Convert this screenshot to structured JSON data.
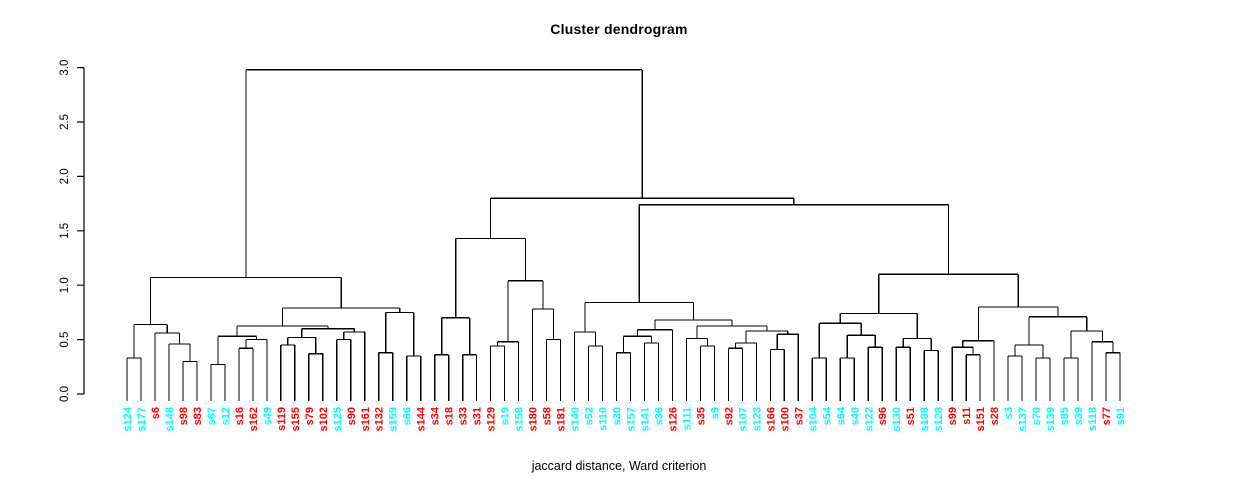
{
  "title": "Cluster dendrogram",
  "xlabel": "jaccard distance, Ward criterion",
  "chart_data": {
    "type": "dendrogram",
    "title": "Cluster dendrogram",
    "xlabel": "jaccard distance, Ward criterion",
    "ylabel": "",
    "ylim": [
      0,
      3
    ],
    "grid": false,
    "yticks": [
      0,
      0.5,
      1,
      1.5,
      2,
      2.5,
      3
    ],
    "ytick_labels": [
      "0.0",
      "0.5",
      "1.0",
      "1.5",
      "2.0",
      "2.5",
      "3.0"
    ],
    "line_color": "#000000",
    "palette": {
      "red": "#ff0000",
      "cyan": "#00ffff"
    },
    "leaves": [
      [
        "s124",
        "cyan"
      ],
      [
        "s177",
        "cyan"
      ],
      [
        "s6",
        "red"
      ],
      [
        "s148",
        "cyan"
      ],
      [
        "s98",
        "red"
      ],
      [
        "s83",
        "red"
      ],
      [
        "s67",
        "cyan"
      ],
      [
        "s12",
        "cyan"
      ],
      [
        "s16",
        "red"
      ],
      [
        "s162",
        "red"
      ],
      [
        "s49",
        "cyan"
      ],
      [
        "s119",
        "red"
      ],
      [
        "s155",
        "red"
      ],
      [
        "s79",
        "red"
      ],
      [
        "s102",
        "red"
      ],
      [
        "s125",
        "cyan"
      ],
      [
        "s90",
        "red"
      ],
      [
        "s161",
        "red"
      ],
      [
        "s132",
        "red"
      ],
      [
        "s159",
        "cyan"
      ],
      [
        "s66",
        "cyan"
      ],
      [
        "s144",
        "red"
      ],
      [
        "s34",
        "red"
      ],
      [
        "s18",
        "red"
      ],
      [
        "s33",
        "red"
      ],
      [
        "s31",
        "red"
      ],
      [
        "s129",
        "red"
      ],
      [
        "s19",
        "cyan"
      ],
      [
        "s158",
        "cyan"
      ],
      [
        "s180",
        "red"
      ],
      [
        "s58",
        "red"
      ],
      [
        "s181",
        "red"
      ],
      [
        "s140",
        "cyan"
      ],
      [
        "s52",
        "cyan"
      ],
      [
        "s110",
        "cyan"
      ],
      [
        "s30",
        "cyan"
      ],
      [
        "s157",
        "cyan"
      ],
      [
        "s141",
        "cyan"
      ],
      [
        "s36",
        "cyan"
      ],
      [
        "s126",
        "red"
      ],
      [
        "s111",
        "cyan"
      ],
      [
        "s35",
        "red"
      ],
      [
        "s9",
        "cyan"
      ],
      [
        "s92",
        "red"
      ],
      [
        "s107",
        "cyan"
      ],
      [
        "s123",
        "cyan"
      ],
      [
        "s166",
        "red"
      ],
      [
        "s100",
        "red"
      ],
      [
        "s37",
        "red"
      ],
      [
        "s104",
        "cyan"
      ],
      [
        "s54",
        "cyan"
      ],
      [
        "s64",
        "cyan"
      ],
      [
        "s40",
        "cyan"
      ],
      [
        "s122",
        "cyan"
      ],
      [
        "s96",
        "red"
      ],
      [
        "s130",
        "cyan"
      ],
      [
        "s51",
        "red"
      ],
      [
        "s188",
        "cyan"
      ],
      [
        "s128",
        "cyan"
      ],
      [
        "s99",
        "red"
      ],
      [
        "s11",
        "red"
      ],
      [
        "s151",
        "red"
      ],
      [
        "s28",
        "red"
      ],
      [
        "s3",
        "cyan"
      ],
      [
        "s137",
        "cyan"
      ],
      [
        "s70",
        "cyan"
      ],
      [
        "s139",
        "cyan"
      ],
      [
        "s85",
        "cyan"
      ],
      [
        "s39",
        "cyan"
      ],
      [
        "s118",
        "cyan"
      ],
      [
        "s77",
        "red"
      ],
      [
        "s91",
        "cyan"
      ]
    ],
    "tree": {
      "h": 2.98,
      "c": [
        {
          "h": 1.07,
          "c": [
            {
              "h": 0.64,
              "c": [
                {
                  "h": 0.33,
                  "c": [
                    0,
                    1
                  ]
                },
                {
                  "h": 0.56,
                  "c": [
                    2,
                    {
                      "h": 0.46,
                      "c": [
                        3,
                        {
                          "h": 0.3,
                          "c": [
                            4,
                            5
                          ]
                        }
                      ]
                    }
                  ]
                }
              ]
            },
            {
              "h": 0.79,
              "c": [
                {
                  "h": 0.625,
                  "c": [
                    {
                      "h": 0.53,
                      "c": [
                        {
                          "h": 0.27,
                          "c": [
                            6,
                            7
                          ]
                        },
                        {
                          "h": 0.5,
                          "c": [
                            {
                              "h": 0.42,
                              "c": [
                                8,
                                9
                              ]
                            },
                            10
                          ]
                        }
                      ]
                    },
                    {
                      "h": 0.6,
                      "c": [
                        {
                          "h": 0.52,
                          "c": [
                            {
                              "h": 0.45,
                              "c": [
                                11,
                                12
                              ]
                            },
                            {
                              "h": 0.37,
                              "c": [
                                13,
                                14
                              ]
                            }
                          ]
                        },
                        {
                          "h": 0.57,
                          "c": [
                            {
                              "h": 0.5,
                              "c": [
                                15,
                                16
                              ]
                            },
                            17
                          ]
                        }
                      ]
                    }
                  ]
                },
                {
                  "h": 0.75,
                  "c": [
                    {
                      "h": 0.38,
                      "c": [
                        18,
                        19
                      ]
                    },
                    {
                      "h": 0.35,
                      "c": [
                        20,
                        21
                      ]
                    }
                  ]
                }
              ]
            }
          ]
        },
        {
          "h": 1.8,
          "c": [
            {
              "h": 1.43,
              "c": [
                {
                  "h": 0.7,
                  "c": [
                    {
                      "h": 0.36,
                      "c": [
                        22,
                        23
                      ]
                    },
                    {
                      "h": 0.36,
                      "c": [
                        24,
                        25
                      ]
                    }
                  ]
                },
                {
                  "h": 1.04,
                  "c": [
                    {
                      "h": 0.48,
                      "c": [
                        {
                          "h": 0.44,
                          "c": [
                            26,
                            27
                          ]
                        },
                        28
                      ]
                    },
                    {
                      "h": 0.78,
                      "c": [
                        29,
                        {
                          "h": 0.5,
                          "c": [
                            30,
                            31
                          ]
                        }
                      ]
                    }
                  ]
                }
              ]
            },
            {
              "h": 1.74,
              "c": [
                {
                  "h": 0.84,
                  "c": [
                    {
                      "h": 0.57,
                      "c": [
                        32,
                        {
                          "h": 0.44,
                          "c": [
                            33,
                            34
                          ]
                        }
                      ]
                    },
                    {
                      "h": 0.68,
                      "c": [
                        {
                          "h": 0.59,
                          "c": [
                            {
                              "h": 0.53,
                              "c": [
                                {
                                  "h": 0.38,
                                  "c": [
                                    35,
                                    36
                                  ]
                                },
                                {
                                  "h": 0.47,
                                  "c": [
                                    37,
                                    38
                                  ]
                                }
                              ]
                            },
                            39
                          ]
                        },
                        {
                          "h": 0.625,
                          "c": [
                            {
                              "h": 0.51,
                              "c": [
                                40,
                                {
                                  "h": 0.44,
                                  "c": [
                                    41,
                                    42
                                  ]
                                }
                              ]
                            },
                            {
                              "h": 0.58,
                              "c": [
                                {
                                  "h": 0.47,
                                  "c": [
                                    {
                                      "h": 0.42,
                                      "c": [
                                        43,
                                        44
                                      ]
                                    },
                                    45
                                  ]
                                },
                                {
                                  "h": 0.55,
                                  "c": [
                                    {
                                      "h": 0.41,
                                      "c": [
                                        46,
                                        47
                                      ]
                                    },
                                    48
                                  ]
                                }
                              ]
                            }
                          ]
                        }
                      ]
                    }
                  ]
                },
                {
                  "h": 1.1,
                  "c": [
                    {
                      "h": 0.74,
                      "c": [
                        {
                          "h": 0.65,
                          "c": [
                            {
                              "h": 0.33,
                              "c": [
                                49,
                                50
                              ]
                            },
                            {
                              "h": 0.54,
                              "c": [
                                {
                                  "h": 0.33,
                                  "c": [
                                    51,
                                    52
                                  ]
                                },
                                {
                                  "h": 0.43,
                                  "c": [
                                    53,
                                    54
                                  ]
                                }
                              ]
                            }
                          ]
                        },
                        {
                          "h": 0.51,
                          "c": [
                            {
                              "h": 0.43,
                              "c": [
                                55,
                                56
                              ]
                            },
                            {
                              "h": 0.4,
                              "c": [
                                57,
                                58
                              ]
                            }
                          ]
                        }
                      ]
                    },
                    {
                      "h": 0.8,
                      "c": [
                        {
                          "h": 0.49,
                          "c": [
                            {
                              "h": 0.43,
                              "c": [
                                59,
                                {
                                  "h": 0.36,
                                  "c": [
                                    60,
                                    61
                                  ]
                                }
                              ]
                            },
                            62
                          ]
                        },
                        {
                          "h": 0.71,
                          "c": [
                            {
                              "h": 0.45,
                              "c": [
                                {
                                  "h": 0.35,
                                  "c": [
                                    63,
                                    64
                                  ]
                                },
                                {
                                  "h": 0.33,
                                  "c": [
                                    65,
                                    66
                                  ]
                                }
                              ]
                            },
                            {
                              "h": 0.58,
                              "c": [
                                {
                                  "h": 0.33,
                                  "c": [
                                    67,
                                    68
                                  ]
                                },
                                {
                                  "h": 0.48,
                                  "c": [
                                    69,
                                    {
                                      "h": 0.38,
                                      "c": [
                                        70,
                                        71
                                      ]
                                    }
                                  ]
                                }
                              ]
                            }
                          ]
                        }
                      ]
                    }
                  ]
                }
              ]
            }
          ]
        }
      ]
    }
  }
}
